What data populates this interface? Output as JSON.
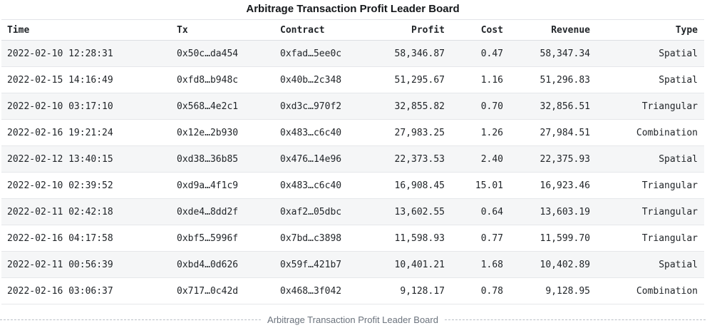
{
  "chart_data": {
    "type": "table",
    "title": "Arbitrage Transaction Profit Leader Board",
    "caption": "Arbitrage Transaction Profit Leader Board",
    "legend_position": "none",
    "grid": "row-separators",
    "columns": [
      {
        "key": "time",
        "label": "Time",
        "align": "left"
      },
      {
        "key": "tx",
        "label": "Tx",
        "align": "left"
      },
      {
        "key": "contract",
        "label": "Contract",
        "align": "left"
      },
      {
        "key": "profit",
        "label": "Profit",
        "align": "right"
      },
      {
        "key": "cost",
        "label": "Cost",
        "align": "right"
      },
      {
        "key": "revenue",
        "label": "Revenue",
        "align": "right"
      },
      {
        "key": "type",
        "label": "Type",
        "align": "right"
      }
    ],
    "rows": [
      [
        "2022-02-10 12:28:31",
        "0x50c…da454",
        "0xfad…5ee0c",
        "58,346.87",
        "0.47",
        "58,347.34",
        "Spatial"
      ],
      [
        "2022-02-15 14:16:49",
        "0xfd8…b948c",
        "0x40b…2c348",
        "51,295.67",
        "1.16",
        "51,296.83",
        "Spatial"
      ],
      [
        "2022-02-10 03:17:10",
        "0x568…4e2c1",
        "0xd3c…970f2",
        "32,855.82",
        "0.70",
        "32,856.51",
        "Triangular"
      ],
      [
        "2022-02-16 19:21:24",
        "0x12e…2b930",
        "0x483…c6c40",
        "27,983.25",
        "1.26",
        "27,984.51",
        "Combination"
      ],
      [
        "2022-02-12 13:40:15",
        "0xd38…36b85",
        "0x476…14e96",
        "22,373.53",
        "2.40",
        "22,375.93",
        "Spatial"
      ],
      [
        "2022-02-10 02:39:52",
        "0xd9a…4f1c9",
        "0x483…c6c40",
        "16,908.45",
        "15.01",
        "16,923.46",
        "Triangular"
      ],
      [
        "2022-02-11 02:42:18",
        "0xde4…8dd2f",
        "0xaf2…05dbc",
        "13,602.55",
        "0.64",
        "13,603.19",
        "Triangular"
      ],
      [
        "2022-02-16 04:17:58",
        "0xbf5…5996f",
        "0x7bd…c3898",
        "11,598.93",
        "0.77",
        "11,599.70",
        "Triangular"
      ],
      [
        "2022-02-11 00:56:39",
        "0xbd4…0d626",
        "0x59f…421b7",
        "10,401.21",
        "1.68",
        "10,402.89",
        "Spatial"
      ],
      [
        "2022-02-16 03:06:37",
        "0x717…0c42d",
        "0x468…3f042",
        "9,128.17",
        "0.78",
        "9,128.95",
        "Combination"
      ]
    ]
  },
  "colors": {
    "stripe": "#f5f6f7",
    "row_border": "#e5e7ea",
    "header_border": "#dcdfe3",
    "text": "#212529",
    "title_text": "#14171a",
    "caption_text": "#6b737d",
    "caption_dash": "#b9bfc6"
  }
}
